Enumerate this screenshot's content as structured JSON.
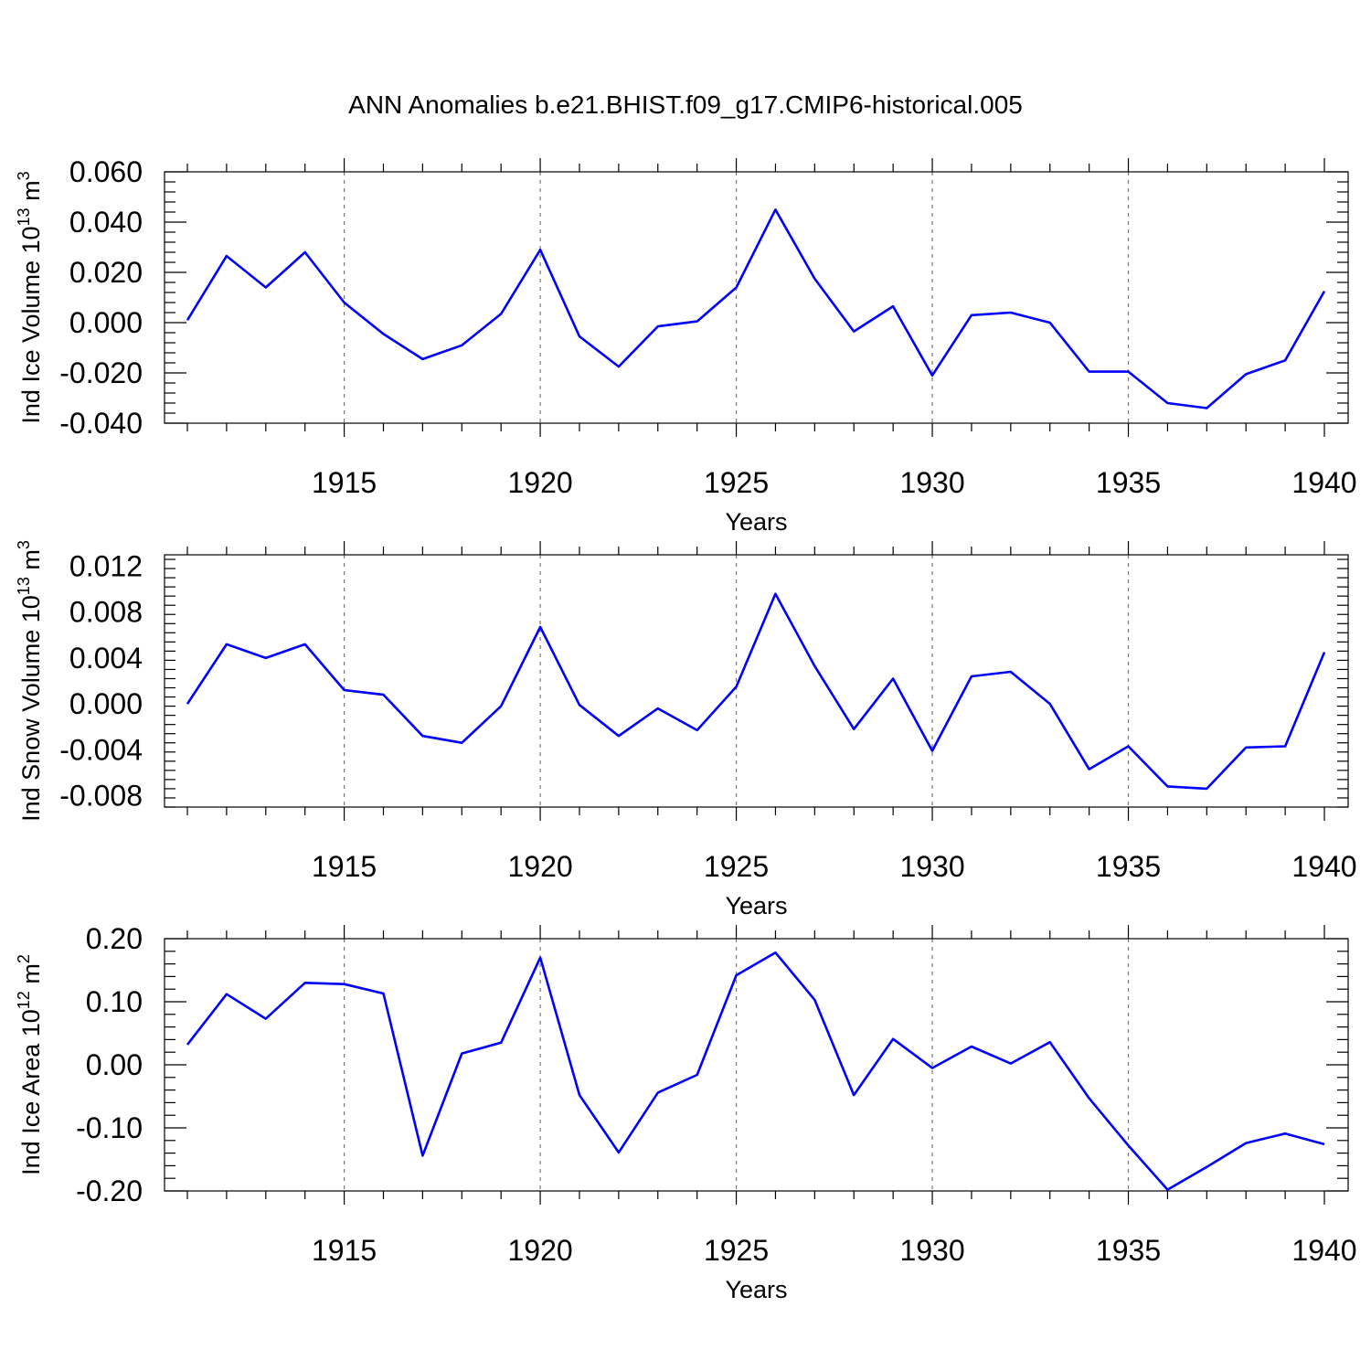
{
  "title": "ANN Anomalies b.e21.BHIST.f09_g17.CMIP6-historical.005",
  "colors": {
    "series": "#0000ff",
    "grid": "#777777",
    "axis": "#000000"
  },
  "chart_data": [
    {
      "type": "line",
      "ylabel": {
        "main": "Ind Ice Volume 10",
        "sup1": "13",
        "mid": " m",
        "sup2": "3"
      },
      "xlabel": "Years",
      "xlim": [
        1911,
        1940
      ],
      "ylim": [
        -0.04,
        0.06
      ],
      "yticks": [
        -0.04,
        -0.02,
        0.0,
        0.02,
        0.04,
        0.06
      ],
      "ytick_labels": [
        "-0.040",
        "-0.020",
        "0.000",
        "0.020",
        "0.040",
        "0.060"
      ],
      "xticks": [
        1915,
        1920,
        1925,
        1930,
        1935,
        1940
      ],
      "xtick_labels": [
        "1915",
        "1920",
        "1925",
        "1930",
        "1935",
        "1940"
      ],
      "grid": "vertical dashed at labeled years",
      "x": [
        1911,
        1912,
        1913,
        1914,
        1915,
        1916,
        1917,
        1918,
        1919,
        1920,
        1921,
        1922,
        1923,
        1924,
        1925,
        1926,
        1927,
        1928,
        1929,
        1930,
        1931,
        1932,
        1933,
        1934,
        1935,
        1936,
        1937,
        1938,
        1939,
        1940
      ],
      "values": [
        0.001,
        0.0265,
        0.014,
        0.028,
        0.008,
        -0.0045,
        -0.0145,
        -0.009,
        0.0035,
        0.029,
        -0.0055,
        -0.0175,
        -0.0015,
        0.0005,
        0.014,
        0.045,
        0.0175,
        -0.0035,
        0.0065,
        -0.021,
        0.003,
        0.004,
        0.0,
        -0.0195,
        -0.0195,
        -0.032,
        -0.034,
        -0.0205,
        -0.015,
        0.0125
      ]
    },
    {
      "type": "line",
      "ylabel": {
        "main": "Ind Snow Volume 10",
        "sup1": "13",
        "mid": " m",
        "sup2": "3"
      },
      "xlabel": "Years",
      "xlim": [
        1911,
        1940
      ],
      "ylim": [
        -0.009,
        0.013
      ],
      "yticks": [
        -0.008,
        -0.004,
        0.0,
        0.004,
        0.008,
        0.012
      ],
      "ytick_labels": [
        "-0.008",
        "-0.004",
        "0.000",
        "0.004",
        "0.008",
        "0.012"
      ],
      "xticks": [
        1915,
        1920,
        1925,
        1930,
        1935,
        1940
      ],
      "xtick_labels": [
        "1915",
        "1920",
        "1925",
        "1930",
        "1935",
        "1940"
      ],
      "grid": "vertical dashed at labeled years",
      "x": [
        1911,
        1912,
        1913,
        1914,
        1915,
        1916,
        1917,
        1918,
        1919,
        1920,
        1921,
        1922,
        1923,
        1924,
        1925,
        1926,
        1927,
        1928,
        1929,
        1930,
        1931,
        1932,
        1933,
        1934,
        1935,
        1936,
        1937,
        1938,
        1939,
        1940
      ],
      "values": [
        0.0,
        0.0052,
        0.004,
        0.0052,
        0.0012,
        0.0008,
        -0.0028,
        -0.0034,
        -0.0002,
        0.0067,
        -0.0001,
        -0.0028,
        -0.0004,
        -0.0023,
        0.0015,
        0.0096,
        0.0033,
        -0.0022,
        0.0022,
        -0.0041,
        0.0024,
        0.0028,
        0.0,
        -0.0057,
        -0.0037,
        -0.0072,
        -0.0074,
        -0.0038,
        -0.0037,
        0.0045
      ]
    },
    {
      "type": "line",
      "ylabel": {
        "main": "Ind Ice Area 10",
        "sup1": "12",
        "mid": " m",
        "sup2": "2"
      },
      "xlabel": "Years",
      "xlim": [
        1911,
        1940
      ],
      "ylim": [
        -0.2,
        0.2
      ],
      "yticks": [
        -0.2,
        -0.1,
        0.0,
        0.1,
        0.2
      ],
      "ytick_labels": [
        "-0.20",
        "-0.10",
        "0.00",
        "0.10",
        "0.20"
      ],
      "xticks": [
        1915,
        1920,
        1925,
        1930,
        1935,
        1940
      ],
      "xtick_labels": [
        "1915",
        "1920",
        "1925",
        "1930",
        "1935",
        "1940"
      ],
      "grid": "vertical dashed at labeled years",
      "x": [
        1911,
        1912,
        1913,
        1914,
        1915,
        1916,
        1917,
        1918,
        1919,
        1920,
        1921,
        1922,
        1923,
        1924,
        1925,
        1926,
        1927,
        1928,
        1929,
        1930,
        1931,
        1932,
        1933,
        1934,
        1935,
        1936,
        1937,
        1938,
        1939,
        1940
      ],
      "values": [
        0.032,
        0.112,
        0.073,
        0.13,
        0.128,
        0.113,
        -0.144,
        0.018,
        0.035,
        0.17,
        -0.048,
        -0.139,
        -0.044,
        -0.016,
        0.142,
        0.178,
        0.103,
        -0.048,
        0.041,
        -0.005,
        0.029,
        0.002,
        0.036,
        -0.053,
        -0.128,
        -0.198,
        -0.162,
        -0.124,
        -0.109,
        -0.126
      ]
    }
  ]
}
